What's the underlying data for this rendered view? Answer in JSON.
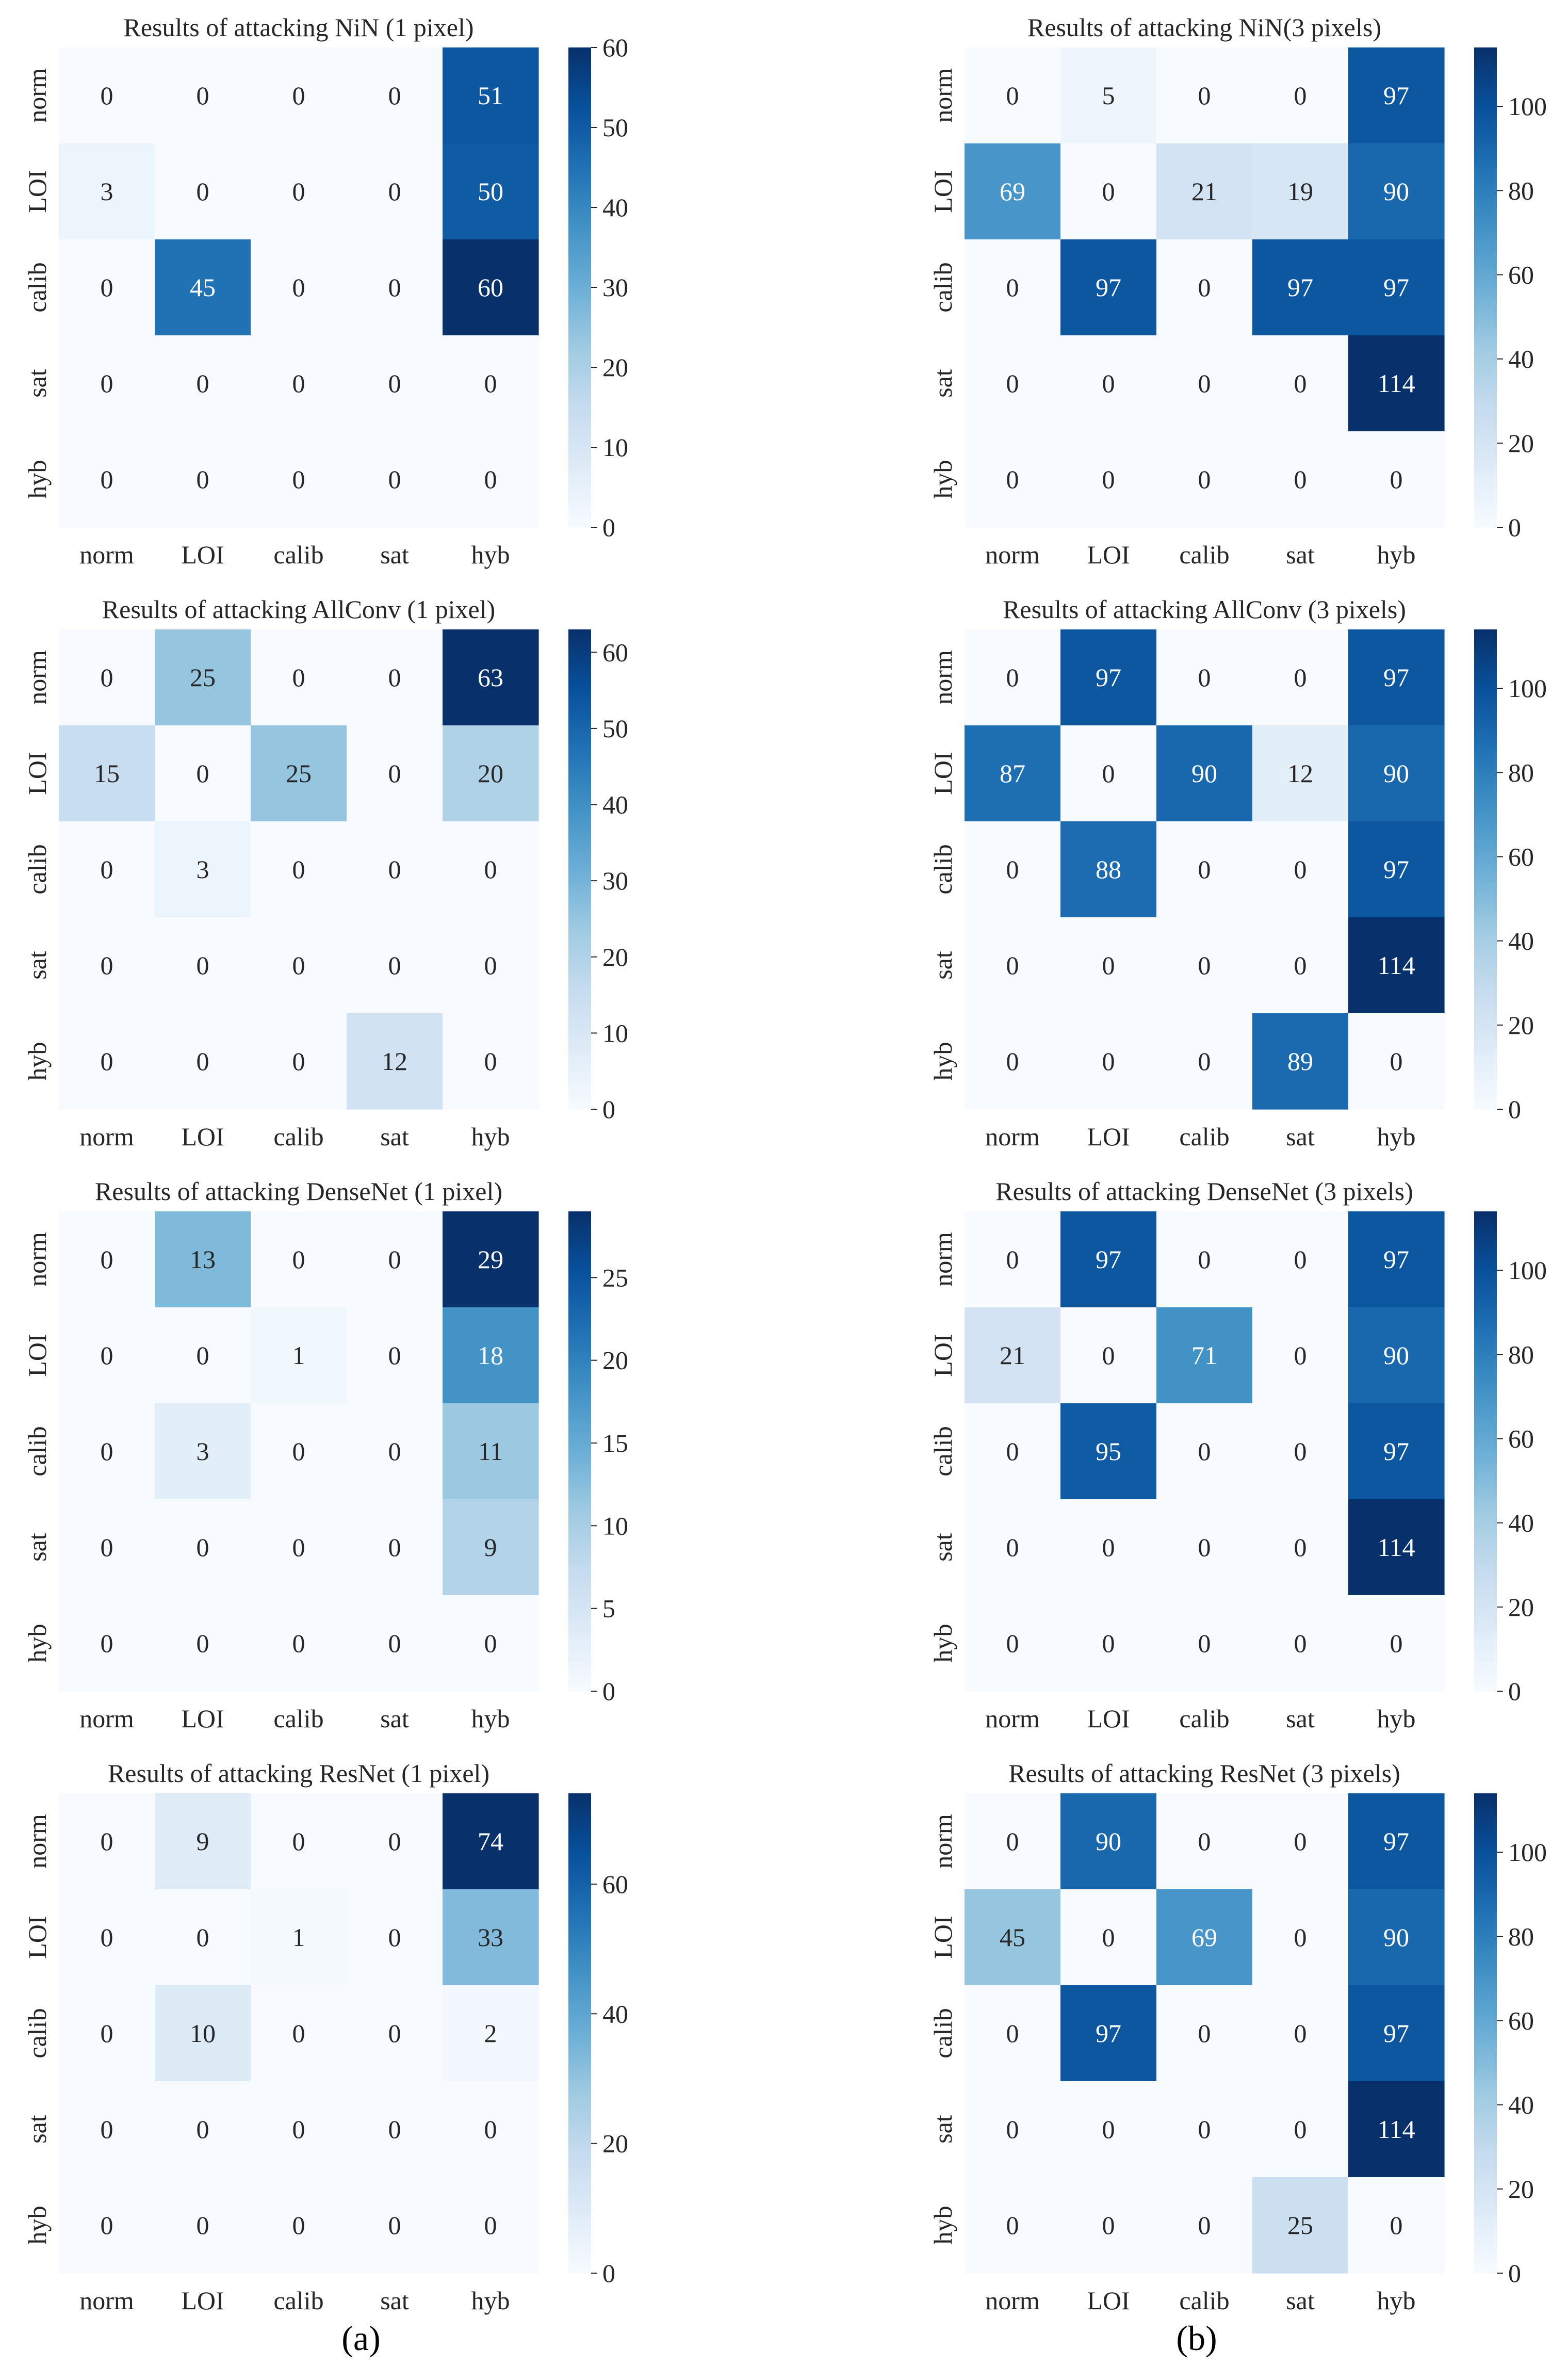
{
  "figure": {
    "panel_labels": [
      "(a)",
      "(b)"
    ]
  },
  "chart_data": [
    {
      "type": "heatmap",
      "title": "Results of attacking NiN (1 pixel)",
      "rows": [
        "norm",
        "LOI",
        "calib",
        "sat",
        "hyb"
      ],
      "cols": [
        "norm",
        "LOI",
        "calib",
        "sat",
        "hyb"
      ],
      "values": [
        [
          0,
          0,
          0,
          0,
          51
        ],
        [
          3,
          0,
          0,
          0,
          50
        ],
        [
          0,
          45,
          0,
          0,
          60
        ],
        [
          0,
          0,
          0,
          0,
          0
        ],
        [
          0,
          0,
          0,
          0,
          0
        ]
      ],
      "colorbar": {
        "min": 0,
        "max": 60,
        "ticks": [
          0,
          10,
          20,
          30,
          40,
          50,
          60
        ]
      },
      "colormap": "Blues"
    },
    {
      "type": "heatmap",
      "title": "Results of attacking NiN(3 pixels)",
      "rows": [
        "norm",
        "LOI",
        "calib",
        "sat",
        "hyb"
      ],
      "cols": [
        "norm",
        "LOI",
        "calib",
        "sat",
        "hyb"
      ],
      "values": [
        [
          0,
          5,
          0,
          0,
          97
        ],
        [
          69,
          0,
          21,
          19,
          90
        ],
        [
          0,
          97,
          0,
          97,
          97
        ],
        [
          0,
          0,
          0,
          0,
          114
        ],
        [
          0,
          0,
          0,
          0,
          0
        ]
      ],
      "colorbar": {
        "min": 0,
        "max": 114,
        "ticks": [
          0,
          20,
          40,
          60,
          80,
          100
        ]
      },
      "colormap": "Blues"
    },
    {
      "type": "heatmap",
      "title": "Results of attacking AllConv (1 pixel)",
      "rows": [
        "norm",
        "LOI",
        "calib",
        "sat",
        "hyb"
      ],
      "cols": [
        "norm",
        "LOI",
        "calib",
        "sat",
        "hyb"
      ],
      "values": [
        [
          0,
          25,
          0,
          0,
          63
        ],
        [
          15,
          0,
          25,
          0,
          20
        ],
        [
          0,
          3,
          0,
          0,
          0
        ],
        [
          0,
          0,
          0,
          0,
          0
        ],
        [
          0,
          0,
          0,
          12,
          0
        ]
      ],
      "colorbar": {
        "min": 0,
        "max": 63,
        "ticks": [
          0,
          10,
          20,
          30,
          40,
          50,
          60
        ]
      },
      "colormap": "Blues"
    },
    {
      "type": "heatmap",
      "title": "Results of attacking AllConv (3 pixels)",
      "rows": [
        "norm",
        "LOI",
        "calib",
        "sat",
        "hyb"
      ],
      "cols": [
        "norm",
        "LOI",
        "calib",
        "sat",
        "hyb"
      ],
      "values": [
        [
          0,
          97,
          0,
          0,
          97
        ],
        [
          87,
          0,
          90,
          12,
          90
        ],
        [
          0,
          88,
          0,
          0,
          97
        ],
        [
          0,
          0,
          0,
          0,
          114
        ],
        [
          0,
          0,
          0,
          89,
          0
        ]
      ],
      "colorbar": {
        "min": 0,
        "max": 114,
        "ticks": [
          0,
          20,
          40,
          60,
          80,
          100
        ]
      },
      "colormap": "Blues"
    },
    {
      "type": "heatmap",
      "title": "Results of attacking DenseNet (1 pixel)",
      "rows": [
        "norm",
        "LOI",
        "calib",
        "sat",
        "hyb"
      ],
      "cols": [
        "norm",
        "LOI",
        "calib",
        "sat",
        "hyb"
      ],
      "values": [
        [
          0,
          13,
          0,
          0,
          29
        ],
        [
          0,
          0,
          1,
          0,
          18
        ],
        [
          0,
          3,
          0,
          0,
          11
        ],
        [
          0,
          0,
          0,
          0,
          9
        ],
        [
          0,
          0,
          0,
          0,
          0
        ]
      ],
      "colorbar": {
        "min": 0,
        "max": 29,
        "ticks": [
          0,
          5,
          10,
          15,
          20,
          25
        ]
      },
      "colormap": "Blues"
    },
    {
      "type": "heatmap",
      "title": "Results of attacking DenseNet (3 pixels)",
      "rows": [
        "norm",
        "LOI",
        "calib",
        "sat",
        "hyb"
      ],
      "cols": [
        "norm",
        "LOI",
        "calib",
        "sat",
        "hyb"
      ],
      "values": [
        [
          0,
          97,
          0,
          0,
          97
        ],
        [
          21,
          0,
          71,
          0,
          90
        ],
        [
          0,
          95,
          0,
          0,
          97
        ],
        [
          0,
          0,
          0,
          0,
          114
        ],
        [
          0,
          0,
          0,
          0,
          0
        ]
      ],
      "colorbar": {
        "min": 0,
        "max": 114,
        "ticks": [
          0,
          20,
          40,
          60,
          80,
          100
        ]
      },
      "colormap": "Blues"
    },
    {
      "type": "heatmap",
      "title": "Results of attacking ResNet (1 pixel)",
      "rows": [
        "norm",
        "LOI",
        "calib",
        "sat",
        "hyb"
      ],
      "cols": [
        "norm",
        "LOI",
        "calib",
        "sat",
        "hyb"
      ],
      "values": [
        [
          0,
          9,
          0,
          0,
          74
        ],
        [
          0,
          0,
          1,
          0,
          33
        ],
        [
          0,
          10,
          0,
          0,
          2
        ],
        [
          0,
          0,
          0,
          0,
          0
        ],
        [
          0,
          0,
          0,
          0,
          0
        ]
      ],
      "colorbar": {
        "min": 0,
        "max": 74,
        "ticks": [
          0,
          20,
          40,
          60
        ]
      },
      "colormap": "Blues"
    },
    {
      "type": "heatmap",
      "title": "Results of attacking ResNet (3 pixels)",
      "rows": [
        "norm",
        "LOI",
        "calib",
        "sat",
        "hyb"
      ],
      "cols": [
        "norm",
        "LOI",
        "calib",
        "sat",
        "hyb"
      ],
      "values": [
        [
          0,
          90,
          0,
          0,
          97
        ],
        [
          45,
          0,
          69,
          0,
          90
        ],
        [
          0,
          97,
          0,
          0,
          97
        ],
        [
          0,
          0,
          0,
          0,
          114
        ],
        [
          0,
          0,
          0,
          25,
          0
        ]
      ],
      "colorbar": {
        "min": 0,
        "max": 114,
        "ticks": [
          0,
          20,
          40,
          60,
          80,
          100
        ]
      },
      "colormap": "Blues"
    }
  ]
}
